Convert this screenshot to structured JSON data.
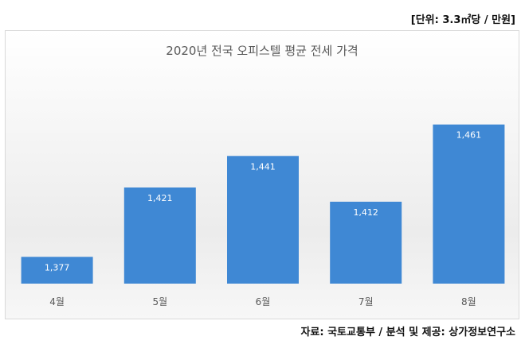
{
  "unit_note": "[단위: 3.3㎡당 / 만원]",
  "source_note": "자료: 국토교통부 / 분석 및 제공: 상가정보연구소",
  "colors": {
    "bar": "#3f88d4",
    "bar_label": "#ffffff",
    "axis_label": "#595959"
  },
  "chart_data": {
    "type": "bar",
    "title": "2020년 전국 오피스텔 평균 전세 가격",
    "categories": [
      "4월",
      "5월",
      "6월",
      "7월",
      "8월"
    ],
    "values": [
      1377,
      1421,
      1441,
      1412,
      1461
    ],
    "value_labels": [
      "1,377",
      "1,421",
      "1,441",
      "1,412",
      "1,461"
    ],
    "xlabel": "",
    "ylabel": "",
    "ylim": [
      1360,
      1480
    ],
    "grid": false,
    "legend": "none"
  }
}
